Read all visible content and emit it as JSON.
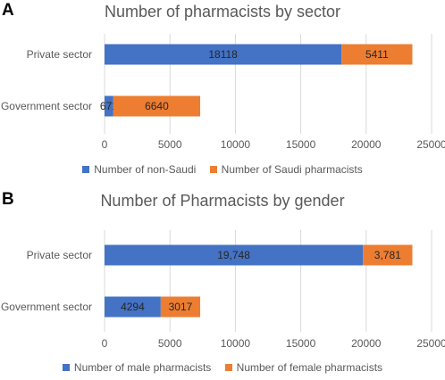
{
  "chart_data": [
    {
      "type": "bar",
      "orientation": "horizontal",
      "stacked": true,
      "panel": "A",
      "title": "Number of pharmacists by sector",
      "categories": [
        "Private sector",
        "Government sector"
      ],
      "series": [
        {
          "name": "Number of non-Saudi",
          "values": [
            18118,
            671
          ],
          "labels": [
            "18118",
            "671"
          ],
          "color": "#4472C4"
        },
        {
          "name": "Number of Saudi pharmacists",
          "values": [
            5411,
            6640
          ],
          "labels": [
            "5411",
            "6640"
          ],
          "color": "#ED7D31"
        }
      ],
      "xlim": [
        0,
        25000
      ],
      "xticks": [
        0,
        5000,
        10000,
        15000,
        20000,
        25000
      ],
      "xtick_labels": [
        "0",
        "5000",
        "10000",
        "15000",
        "20000",
        "25000"
      ],
      "grid": true,
      "legend": "bottom"
    },
    {
      "type": "bar",
      "orientation": "horizontal",
      "stacked": true,
      "panel": "B",
      "title": "Number of Pharmacists by gender",
      "categories": [
        "Private sector",
        "Government sector"
      ],
      "series": [
        {
          "name": "Number of male pharmacists",
          "values": [
            19748,
            4294
          ],
          "labels": [
            "19,748",
            "4294"
          ],
          "color": "#4472C4"
        },
        {
          "name": "Number of female pharmacists",
          "values": [
            3781,
            3017
          ],
          "labels": [
            "3,781",
            "3017"
          ],
          "color": "#ED7D31"
        }
      ],
      "xlim": [
        0,
        25000
      ],
      "xticks": [
        0,
        5000,
        10000,
        15000,
        20000,
        25000
      ],
      "xtick_labels": [
        "0",
        "5000",
        "10000",
        "15000",
        "20000",
        "25000"
      ],
      "grid": true,
      "legend": "bottom"
    }
  ]
}
